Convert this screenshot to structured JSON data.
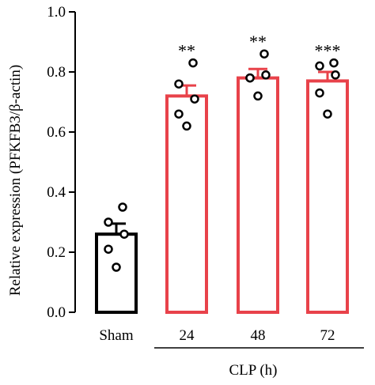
{
  "chart_data": {
    "type": "bar",
    "categories": [
      "Sham",
      "24",
      "48",
      "72"
    ],
    "values": [
      0.26,
      0.72,
      0.78,
      0.77
    ],
    "errors": [
      0.035,
      0.035,
      0.03,
      0.03
    ],
    "points": [
      [
        0.15,
        0.21,
        0.26,
        0.3,
        0.35
      ],
      [
        0.62,
        0.66,
        0.71,
        0.76,
        0.83
      ],
      [
        0.72,
        0.78,
        0.79,
        0.78,
        0.86
      ],
      [
        0.66,
        0.73,
        0.79,
        0.82,
        0.83
      ]
    ],
    "significance": [
      "",
      "**",
      "**",
      "***"
    ],
    "ylabel": "Relative expression (PFKFB3/β-actin)",
    "group_label": "CLP (h)",
    "yticks": [
      "0.0",
      "0.2",
      "0.4",
      "0.6",
      "0.8",
      "1.0"
    ],
    "ylim": [
      0,
      1.0
    ],
    "colors": [
      "#000000",
      "#e8424a",
      "#e8424a",
      "#e8424a"
    ]
  }
}
